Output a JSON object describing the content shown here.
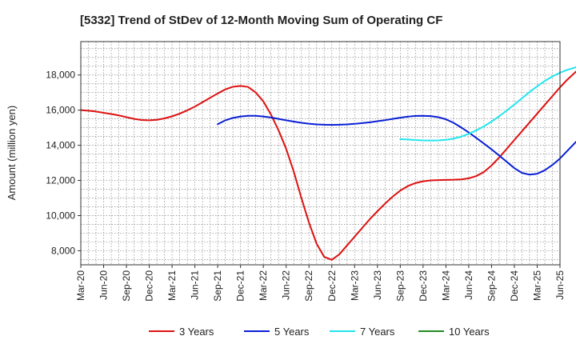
{
  "chart_data": {
    "type": "line",
    "title": "[5332]  Trend of StDev of 12-Month Moving Sum of Operating CF",
    "xlabel": "",
    "ylabel": "Amount (million yen)",
    "x_ticks": [
      "Mar-20",
      "Jun-20",
      "Sep-20",
      "Dec-20",
      "Mar-21",
      "Jun-21",
      "Sep-21",
      "Dec-21",
      "Mar-22",
      "Jun-22",
      "Sep-22",
      "Dec-22",
      "Mar-23",
      "Jun-23",
      "Sep-23",
      "Dec-23",
      "Mar-24",
      "Jun-24",
      "Sep-24",
      "Dec-24",
      "Mar-25",
      "Jun-25"
    ],
    "y_ticks": [
      8000,
      10000,
      12000,
      14000,
      16000,
      18000
    ],
    "y_tick_labels": [
      "8,000",
      "10,000",
      "12,000",
      "14,000",
      "16,000",
      "18,000"
    ],
    "ylim": [
      7200,
      19900
    ],
    "grid": true,
    "legend_position": "bottom",
    "series": [
      {
        "name": "3 Years",
        "color": "#dd1111",
        "start_month_index": 0,
        "values": [
          16000,
          15970,
          15920,
          15850,
          15780,
          15700,
          15600,
          15500,
          15440,
          15420,
          15450,
          15530,
          15650,
          15800,
          15990,
          16200,
          16450,
          16700,
          16950,
          17180,
          17330,
          17380,
          17320,
          17000,
          16500,
          15750,
          14850,
          13800,
          12500,
          11000,
          9600,
          8400,
          7650,
          7480,
          7800,
          8300,
          8800,
          9300,
          9800,
          10250,
          10680,
          11080,
          11420,
          11680,
          11850,
          11950,
          12000,
          12020,
          12030,
          12040,
          12060,
          12120,
          12250,
          12480,
          12850,
          13300,
          13800,
          14300,
          14800,
          15300,
          15800,
          16300,
          16800,
          17300,
          17750,
          18150,
          18520,
          18850,
          19150,
          19380,
          19550,
          19630
        ]
      },
      {
        "name": "5 Years",
        "color": "#0a1fd6",
        "start_month_index": 18,
        "values": [
          15200,
          15420,
          15560,
          15640,
          15680,
          15680,
          15640,
          15580,
          15500,
          15420,
          15350,
          15280,
          15230,
          15190,
          15170,
          15160,
          15170,
          15190,
          15220,
          15260,
          15310,
          15370,
          15430,
          15500,
          15570,
          15630,
          15670,
          15680,
          15660,
          15600,
          15480,
          15280,
          15020,
          14730,
          14420,
          14100,
          13770,
          13420,
          13060,
          12700,
          12430,
          12330,
          12380,
          12580,
          12880,
          13250,
          13700,
          14150,
          14560,
          14890,
          15130,
          15330,
          15480,
          15590,
          15660,
          15700
        ]
      },
      {
        "name": "7 Years",
        "color": "#22e5ee",
        "start_month_index": 42,
        "values": [
          14350,
          14330,
          14300,
          14280,
          14270,
          14280,
          14310,
          14380,
          14490,
          14650,
          14850,
          15080,
          15350,
          15650,
          15980,
          16320,
          16680,
          17030,
          17360,
          17660,
          17920,
          18130,
          18300,
          18430,
          18530,
          18600,
          18650
        ]
      },
      {
        "name": "10 Years",
        "color": "#228b22",
        "start_month_index": 0,
        "values": []
      }
    ]
  }
}
